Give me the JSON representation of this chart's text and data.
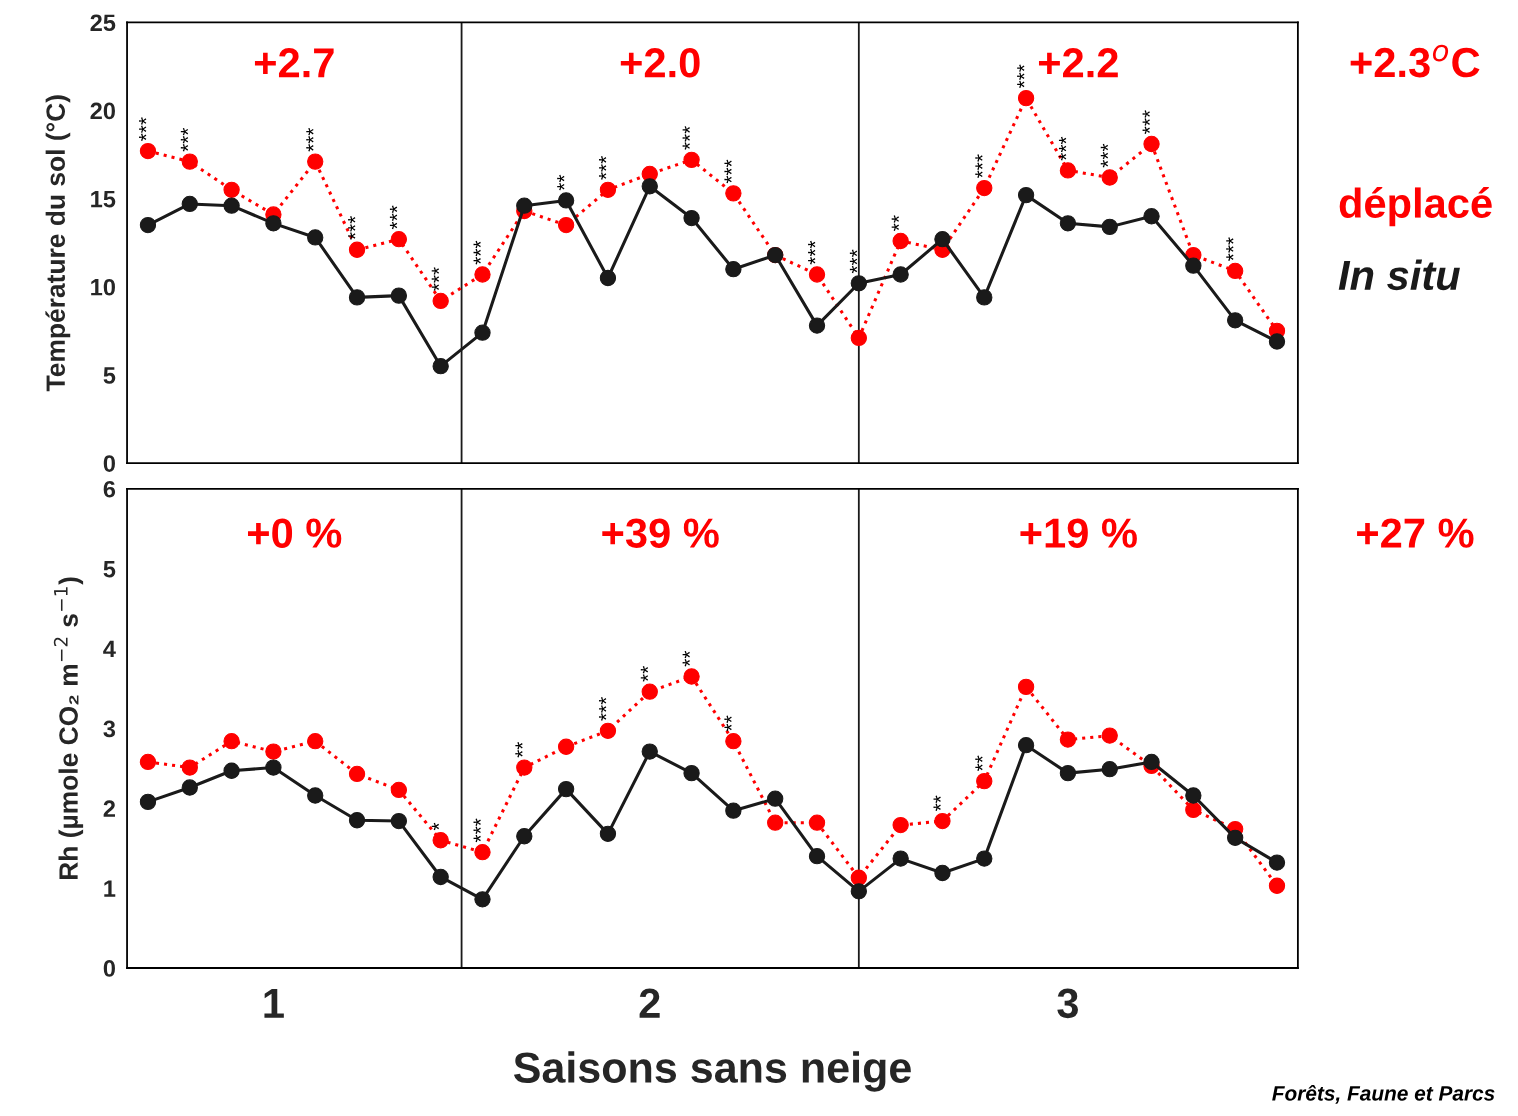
{
  "chart_data": [
    {
      "type": "line",
      "ylabel": "Température du sol (°C)",
      "categories": [
        null,
        null,
        null,
        null,
        null,
        null,
        null,
        null,
        null,
        null,
        null,
        null,
        null,
        null,
        null,
        null,
        null,
        null,
        null,
        null,
        null,
        null,
        null,
        null,
        null,
        null,
        null,
        null
      ],
      "ylim": [
        0,
        25
      ],
      "yticks": [
        0,
        5,
        10,
        15,
        20,
        25
      ],
      "tick_labels": "y",
      "legend": "right",
      "marker": "circle",
      "series": [
        {
          "name": "déplacé",
          "color": "#ff0000",
          "line_style": "dotted",
          "values": [
            17.7,
            17.1,
            15.5,
            14.1,
            17.1,
            12.1,
            12.7,
            9.2,
            10.7,
            14.3,
            13.5,
            15.5,
            16.4,
            17.2,
            15.3,
            11.8,
            10.7,
            7.1,
            12.6,
            12.1,
            15.6,
            20.7,
            16.6,
            16.2,
            18.1,
            11.8,
            10.9,
            7.5
          ]
        },
        {
          "name": "In situ",
          "color": "#1a1a1a",
          "line_style": "solid",
          "values": [
            13.5,
            14.7,
            14.6,
            13.6,
            12.8,
            9.4,
            9.5,
            5.5,
            7.4,
            14.6,
            14.9,
            10.5,
            15.7,
            13.9,
            11.0,
            11.8,
            7.8,
            10.2,
            10.7,
            12.7,
            9.4,
            15.2,
            13.6,
            13.4,
            14.0,
            11.2,
            8.1,
            6.9
          ]
        }
      ],
      "annotations": [
        "+2.7",
        "+2.0",
        "+2.2",
        "+2.3$^{o}$C",
        {
          "text": "***",
          "y": 17.7
        },
        {
          "text": "***",
          "y": 17.1
        },
        {
          "text": "***",
          "y": 17.1
        },
        {
          "text": "***",
          "y": 12.1
        },
        {
          "text": "***",
          "y": 12.7
        },
        {
          "text": "***",
          "y": 9.2
        },
        {
          "text": "***",
          "y": 10.7
        },
        {
          "text": "**",
          "y": 14.9
        },
        {
          "text": "***",
          "y": 15.5
        },
        {
          "text": "***",
          "y": 17.2
        },
        {
          "text": "***",
          "y": 15.3
        },
        {
          "text": "***",
          "y": 10.7
        },
        {
          "text": "***",
          "y": 10.2
        },
        {
          "text": "**",
          "y": 12.6
        },
        {
          "text": "***",
          "y": 15.6
        },
        {
          "text": "***",
          "y": 20.7
        },
        {
          "text": "***",
          "y": 16.6
        },
        {
          "text": "***",
          "y": 16.2
        },
        {
          "text": "***",
          "y": 18.1
        },
        {
          "text": "***",
          "y": 10.9
        }
      ]
    },
    {
      "type": "line",
      "ylabel": "Rh (µmole CO₂ m$^{−2}$ s$^{−1}$)",
      "xlabel": "Saisons sans neige",
      "categories": [
        null,
        null,
        null,
        "1",
        null,
        null,
        null,
        null,
        null,
        null,
        null,
        null,
        "2",
        null,
        null,
        null,
        null,
        null,
        null,
        null,
        null,
        null,
        "3",
        null,
        null,
        null,
        null,
        null
      ],
      "ylim": [
        0,
        6
      ],
      "yticks": [
        0,
        1,
        2,
        3,
        4,
        5,
        6
      ],
      "marker": "circle",
      "series": [
        {
          "color": "#ff0000",
          "line_style": "dotted",
          "values": [
            2.58,
            2.51,
            2.84,
            2.71,
            2.84,
            2.43,
            2.23,
            1.6,
            1.45,
            2.51,
            2.77,
            2.97,
            3.46,
            3.65,
            2.84,
            1.82,
            1.82,
            1.13,
            1.79,
            1.84,
            2.34,
            3.52,
            2.86,
            2.91,
            2.53,
            1.98,
            1.74,
            1.03
          ]
        },
        {
          "color": "#1a1a1a",
          "line_style": "solid",
          "values": [
            2.08,
            2.26,
            2.47,
            2.51,
            2.16,
            1.85,
            1.84,
            1.14,
            0.86,
            1.65,
            2.24,
            1.68,
            2.71,
            2.44,
            1.97,
            2.12,
            1.4,
            0.96,
            1.37,
            1.19,
            1.37,
            2.79,
            2.44,
            2.49,
            2.58,
            2.16,
            1.63,
            1.32
          ]
        }
      ],
      "annotations": [
        "+0 %",
        "+39 %",
        "+19 %",
        "+27 %",
        "Forêts, Faune et Parcs",
        {
          "text": "*",
          "y": 1.6
        },
        {
          "text": "***",
          "y": 1.45
        },
        {
          "text": "**",
          "y": 2.51
        },
        {
          "text": "***",
          "y": 2.97
        },
        {
          "text": "**",
          "y": 3.46
        },
        {
          "text": "**",
          "y": 3.65
        },
        {
          "text": "**",
          "y": 2.84
        },
        {
          "text": "**",
          "y": 1.84
        },
        {
          "text": "**",
          "y": 2.34
        }
      ]
    }
  ]
}
